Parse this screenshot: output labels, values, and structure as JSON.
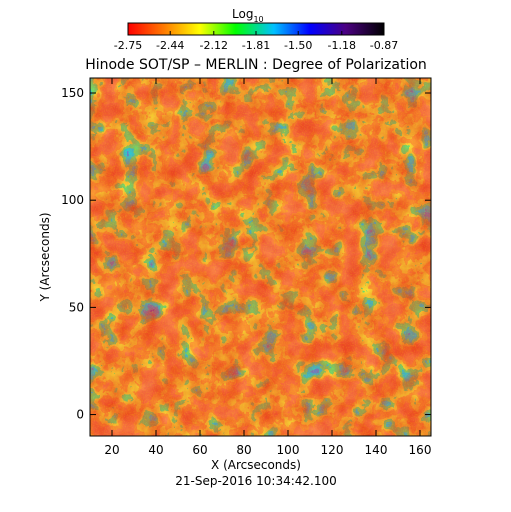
{
  "title": "Hinode SOT/SP – MERLIN : Degree of Polarization",
  "colorbar": {
    "label": "Log",
    "label_subscript": "10",
    "ticks": [
      "-2.75",
      "-2.44",
      "-2.12",
      "-1.81",
      "-1.50",
      "-1.18",
      "-0.87"
    ],
    "range": [
      -2.75,
      -0.87
    ],
    "colors": [
      "#ff0000",
      "#ff7a00",
      "#ffff00",
      "#00ff00",
      "#00c0ff",
      "#0000ff",
      "#4b0082",
      "#000000"
    ]
  },
  "axes": {
    "xlabel": "X (Arcseconds)",
    "ylabel": "Y (Arcseconds)",
    "xticks": [
      "20",
      "40",
      "60",
      "80",
      "100",
      "120",
      "140",
      "160"
    ],
    "yticks": [
      "0",
      "50",
      "100",
      "150"
    ],
    "xlim": [
      10,
      165
    ],
    "ylim": [
      -10,
      157
    ]
  },
  "timestamp": "21-Sep-2016 10:34:42.100",
  "image_colors": {
    "background": "#e83b1a",
    "low": "#ff6a1a",
    "mid": "#ffff00",
    "green": "#28e028",
    "cyan": "#00c8ff",
    "blue": "#1010ff",
    "dark": "#0a0080"
  }
}
